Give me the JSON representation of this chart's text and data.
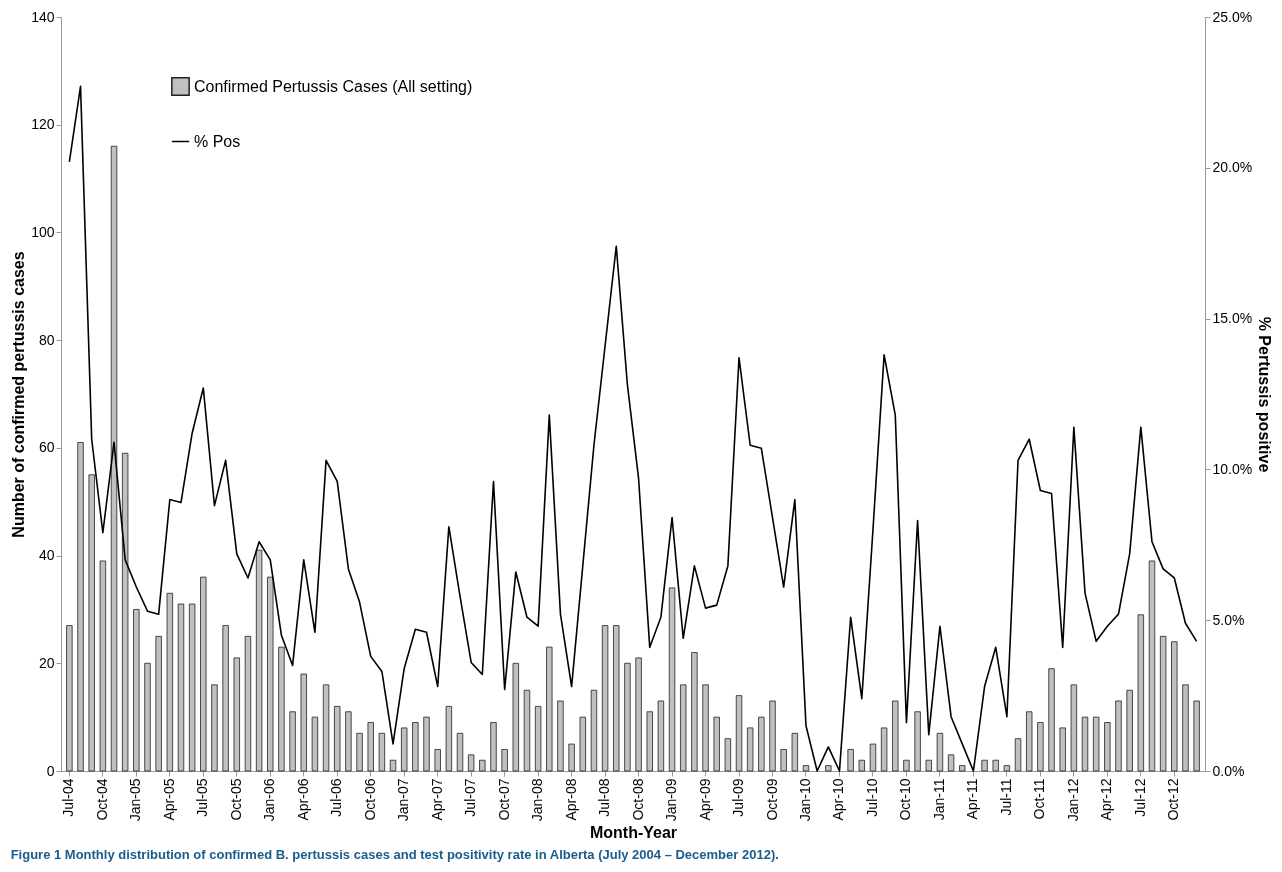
{
  "chart_data": {
    "type": "bar",
    "categories": [
      "Jul-04",
      null,
      null,
      "Oct-04",
      null,
      null,
      "Jan-05",
      null,
      null,
      "Apr-05",
      null,
      null,
      "Jul-05",
      null,
      null,
      "Oct-05",
      null,
      null,
      "Jan-06",
      null,
      null,
      "Apr-06",
      null,
      null,
      "Jul-06",
      null,
      null,
      "Oct-06",
      null,
      null,
      "Jan-07",
      null,
      null,
      "Apr-07",
      null,
      null,
      "Jul-07",
      null,
      null,
      "Oct-07",
      null,
      null,
      "Jan-08",
      null,
      null,
      "Apr-08",
      null,
      null,
      "Jul-08",
      null,
      null,
      "Oct-08",
      null,
      null,
      "Jan-09",
      null,
      null,
      "Apr-09",
      null,
      null,
      "Jul-09",
      null,
      null,
      "Oct-09",
      null,
      null,
      "Jan-10",
      null,
      null,
      "Apr-10",
      null,
      null,
      "Jul-10",
      null,
      null,
      "Oct-10",
      null,
      null,
      "Jan-11",
      null,
      null,
      "Apr-11",
      null,
      null,
      "Jul-11",
      null,
      null,
      "Oct-11",
      null,
      null,
      "Jan-12",
      null,
      null,
      "Apr-12",
      null,
      null,
      "Jul-12",
      null,
      null,
      "Oct-12",
      null,
      null
    ],
    "series": [
      {
        "name": "Confirmed Pertussis Cases (All setting)",
        "color": "#c0c0c0",
        "values": [
          27,
          61,
          55,
          39,
          116,
          59,
          30,
          20,
          25,
          33,
          31,
          31,
          36,
          16,
          27,
          21,
          25,
          41,
          36,
          23,
          11,
          18,
          10,
          16,
          12,
          11,
          7,
          9,
          7,
          2,
          8,
          9,
          10,
          4,
          12,
          7,
          3,
          2,
          9,
          4,
          20,
          15,
          12,
          23,
          13,
          5,
          10,
          15,
          27,
          27,
          20,
          21,
          11,
          13,
          34,
          16,
          22,
          16,
          10,
          6,
          14,
          8,
          10,
          13,
          4,
          7,
          1,
          0,
          1,
          0,
          4,
          2,
          5,
          8,
          13,
          2,
          11,
          2,
          7,
          3,
          1,
          0,
          2,
          2,
          1,
          6,
          11,
          9,
          19,
          8,
          16,
          10,
          10,
          9,
          13,
          15,
          29,
          39,
          25,
          24,
          16,
          13
        ]
      },
      {
        "name": "% Pos",
        "type": "line",
        "axis": "y2",
        "color": "#000000",
        "values": [
          20.2,
          22.7,
          11.0,
          7.9,
          10.9,
          7.0,
          6.1,
          5.3,
          5.2,
          9.0,
          8.9,
          11.2,
          12.7,
          8.8,
          10.3,
          7.2,
          6.4,
          7.6,
          7.0,
          4.5,
          3.5,
          7.0,
          4.6,
          10.3,
          9.6,
          6.7,
          5.6,
          3.8,
          3.3,
          0.9,
          3.4,
          4.7,
          4.6,
          2.8,
          8.1,
          5.8,
          3.6,
          3.2,
          9.6,
          2.7,
          6.6,
          5.1,
          4.8,
          11.8,
          5.2,
          2.8,
          6.8,
          10.8,
          14.1,
          17.4,
          12.8,
          9.7,
          4.1,
          5.1,
          8.4,
          4.4,
          6.8,
          5.4,
          5.5,
          6.8,
          13.7,
          10.8,
          10.7,
          8.4,
          6.1,
          9.0,
          1.5,
          0,
          0.8,
          0,
          5.1,
          2.4,
          8.0,
          13.8,
          11.8,
          1.6,
          8.3,
          1.2,
          4.8,
          1.8,
          0.9,
          0,
          2.8,
          4.1,
          1.8,
          10.3,
          11.0,
          9.3,
          9.2,
          4.1,
          11.4,
          5.9,
          4.3,
          4.8,
          5.2,
          7.2,
          11.4,
          7.6,
          6.7,
          6.4,
          4.9,
          4.3
        ]
      }
    ],
    "xlabel": "Month-Year",
    "ylabel": "Number of confirmed pertussis cases",
    "y2label": "% Pertussis positive",
    "ylim": [
      0,
      140
    ],
    "yticks": [
      0,
      20,
      40,
      60,
      80,
      100,
      120,
      140
    ],
    "y2lim": [
      0,
      25
    ],
    "y2ticks": [
      {
        "value": 0,
        "label": "0.0%"
      },
      {
        "value": 5,
        "label": "5.0%"
      },
      {
        "value": 10,
        "label": "10.0%"
      },
      {
        "value": 15,
        "label": "15.0%"
      },
      {
        "value": 20,
        "label": "20.0%"
      },
      {
        "value": 25,
        "label": "25.0%"
      }
    ],
    "legend": "top left",
    "grid": false,
    "annotations": [
      "Figure 1 Monthly distribution of confirmed B. pertussis cases and test positivity rate in Alberta (July 2004 – December 2012)."
    ]
  }
}
